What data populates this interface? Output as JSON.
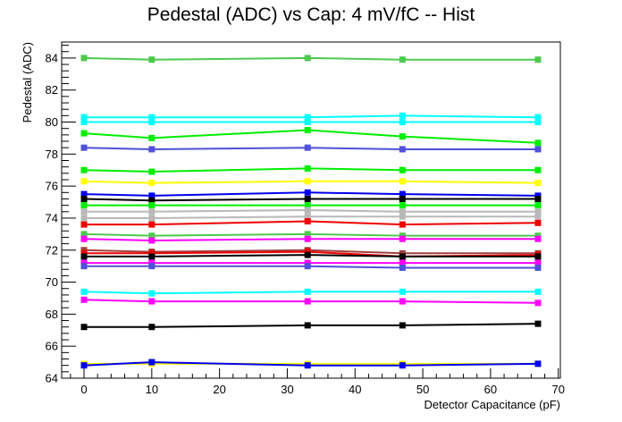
{
  "chart_data": {
    "type": "line",
    "title": "Pedestal (ADC) vs Cap: 4 mV/fC -- Hist",
    "xlabel": "Detector Capacitance (pF)",
    "ylabel": "Pedestal (ADC)",
    "xlim": [
      -3.3,
      70.3
    ],
    "ylim": [
      64,
      85
    ],
    "xticks": [
      0,
      10,
      20,
      30,
      40,
      50,
      60,
      70
    ],
    "yticks": [
      64,
      66,
      68,
      70,
      72,
      74,
      76,
      78,
      80,
      82,
      84
    ],
    "grid": false,
    "x": [
      0,
      10,
      33,
      47,
      67
    ],
    "series": [
      {
        "color": "#4ec94e",
        "values": [
          84.0,
          83.9,
          84.0,
          83.9,
          83.9
        ]
      },
      {
        "color": "#00ffff",
        "values": [
          80.3,
          80.3,
          80.3,
          80.4,
          80.3
        ]
      },
      {
        "color": "#00ffff",
        "values": [
          80.0,
          80.0,
          80.0,
          80.0,
          80.0
        ]
      },
      {
        "color": "#00ee00",
        "values": [
          79.3,
          79.0,
          79.5,
          79.1,
          78.7
        ]
      },
      {
        "color": "#5050d8",
        "values": [
          78.4,
          78.3,
          78.4,
          78.3,
          78.3
        ]
      },
      {
        "color": "#00ee00",
        "values": [
          77.0,
          76.9,
          77.1,
          77.0,
          77.0
        ]
      },
      {
        "color": "#ffff00",
        "values": [
          76.3,
          76.2,
          76.3,
          76.3,
          76.2
        ]
      },
      {
        "color": "#0000ee",
        "values": [
          75.5,
          75.4,
          75.6,
          75.5,
          75.4
        ]
      },
      {
        "color": "#000000",
        "values": [
          75.2,
          75.1,
          75.2,
          75.2,
          75.2
        ]
      },
      {
        "color": "#00ee00",
        "values": [
          74.8,
          74.8,
          74.8,
          74.8,
          74.8
        ]
      },
      {
        "color": "#b8b8b8",
        "values": [
          74.4,
          74.4,
          74.5,
          74.4,
          74.4
        ]
      },
      {
        "color": "#b8b8b8",
        "values": [
          74.0,
          74.0,
          74.1,
          74.1,
          74.1
        ]
      },
      {
        "color": "#ee0000",
        "values": [
          73.6,
          73.6,
          73.8,
          73.6,
          73.7
        ]
      },
      {
        "color": "#4ec94e",
        "values": [
          73.0,
          72.9,
          73.0,
          72.9,
          72.9
        ]
      },
      {
        "color": "#ff00ff",
        "values": [
          72.7,
          72.6,
          72.7,
          72.7,
          72.7
        ]
      },
      {
        "color": "#a04040",
        "values": [
          72.0,
          71.9,
          72.0,
          71.8,
          71.8
        ]
      },
      {
        "color": "#ee0000",
        "values": [
          71.8,
          71.8,
          71.9,
          71.6,
          71.7
        ]
      },
      {
        "color": "#000000",
        "values": [
          71.6,
          71.6,
          71.7,
          71.6,
          71.6
        ]
      },
      {
        "color": "#ff00ff",
        "values": [
          71.2,
          71.2,
          71.2,
          71.2,
          71.2
        ]
      },
      {
        "color": "#5050d8",
        "values": [
          71.0,
          71.0,
          71.0,
          70.9,
          70.9
        ]
      },
      {
        "color": "#00ffff",
        "values": [
          69.4,
          69.3,
          69.4,
          69.4,
          69.4
        ]
      },
      {
        "color": "#ff00ff",
        "values": [
          68.9,
          68.8,
          68.8,
          68.8,
          68.7
        ]
      },
      {
        "color": "#000000",
        "values": [
          67.2,
          67.2,
          67.3,
          67.3,
          67.4
        ]
      },
      {
        "color": "#ffff00",
        "values": [
          64.9,
          64.9,
          64.9,
          64.9,
          64.9
        ]
      },
      {
        "color": "#0000ee",
        "values": [
          64.8,
          65.0,
          64.8,
          64.8,
          64.9
        ]
      }
    ]
  }
}
